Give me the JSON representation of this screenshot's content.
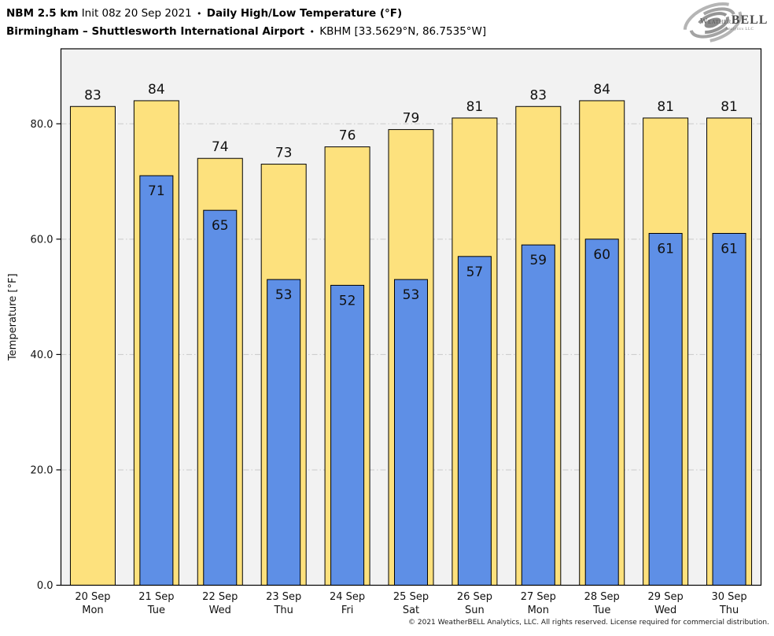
{
  "header": {
    "model": "NBM 2.5 km",
    "init": "Init 08z 20 Sep 2021",
    "bullet": "•",
    "product": "Daily High/Low Temperature (°F)",
    "station": "Birmingham – Shuttlesworth International Airport",
    "station_id": "KBHM [33.5629°N, 86.7535°W]"
  },
  "logo": {
    "part1": "Weather",
    "part2": "BELL",
    "sub": "Analytics LLC"
  },
  "footer": {
    "copyright": "© 2021 WeatherBELL Analytics, LLC. All rights reserved. License required for commercial distribution."
  },
  "chart_data": {
    "type": "bar",
    "title": "Daily High/Low Temperature (°F)",
    "ylabel": "Temperature [°F]",
    "ylim": [
      0,
      93
    ],
    "yticks": [
      0,
      20,
      40,
      60,
      80
    ],
    "ytick_labels": [
      "0.0",
      "20.0",
      "40.0",
      "60.0",
      "80.0"
    ],
    "grid": true,
    "legend_position": "none",
    "categories": [
      "20 Sep",
      "21 Sep",
      "22 Sep",
      "23 Sep",
      "24 Sep",
      "25 Sep",
      "26 Sep",
      "27 Sep",
      "28 Sep",
      "29 Sep",
      "30 Sep"
    ],
    "weekdays": [
      "Mon",
      "Tue",
      "Wed",
      "Thu",
      "Fri",
      "Sat",
      "Sun",
      "Mon",
      "Tue",
      "Wed",
      "Thu"
    ],
    "series": [
      {
        "name": "Daily High",
        "color": "#FDE17D",
        "values": [
          83,
          84,
          74,
          73,
          76,
          79,
          81,
          83,
          84,
          81,
          81
        ]
      },
      {
        "name": "Daily Low",
        "color": "#5E8FE6",
        "values": [
          null,
          71,
          65,
          53,
          52,
          53,
          57,
          59,
          60,
          61,
          61
        ]
      }
    ],
    "colors": {
      "plot_bg": "#F2F2F2",
      "grid": "#C9C9C9",
      "bar_edge": "#000000",
      "text": "#111111"
    }
  }
}
